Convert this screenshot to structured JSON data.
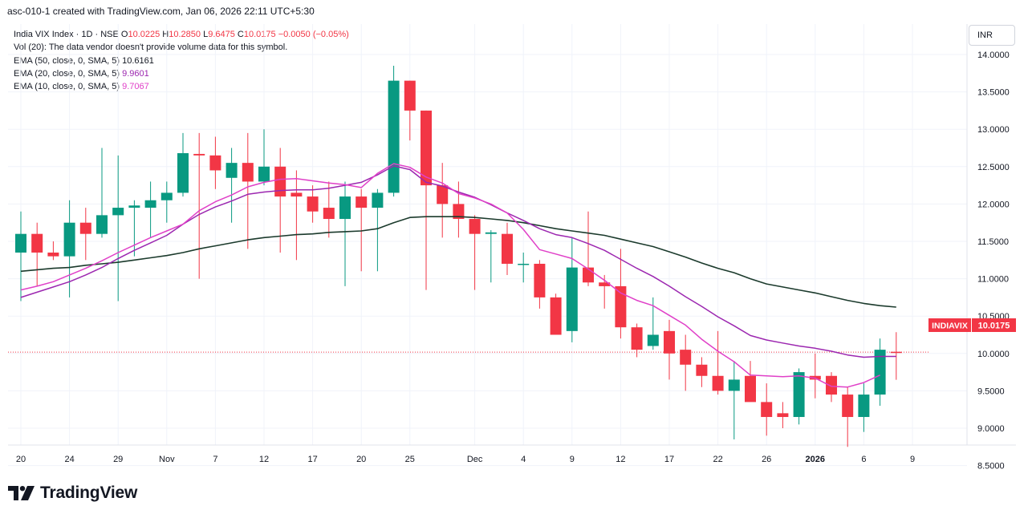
{
  "header": {
    "text": "asc-010-1 created with TradingView.com, Jan 06, 2026 22:11 UTC+5:30"
  },
  "legend": {
    "symbol": "India VIX Index · 1D · NSE",
    "o_label": "O",
    "o_value": "10.0225",
    "h_label": "H",
    "h_value": "10.2850",
    "l_label": "L",
    "l_value": "9.6475",
    "c_label": "C",
    "c_value": "10.0175",
    "change": "−0.0050 (−0.05%)",
    "vol_note": "Vol (20): The data vendor doesn't provide volume data for this symbol.",
    "ema50_label": "EMA (50, close, 0, SMA, 5)",
    "ema50_value": "10.6161",
    "ema20_label": "EMA (20, close, 0, SMA, 5)",
    "ema20_value": "9.9601",
    "ema10_label": "EMA (10, close, 0, SMA, 5)",
    "ema10_value": "9.7067"
  },
  "currency": "INR",
  "price_tag": {
    "symbol": "INDIAVIX",
    "value": "10.0175"
  },
  "brand": {
    "name": "TradingView"
  },
  "colors": {
    "up": "#089981",
    "down": "#f23645",
    "ema50": "#1b3a2c",
    "ema20": "#9c27b0",
    "ema10": "#e040c8",
    "last": "#f23645"
  },
  "chart_data": {
    "type": "candlestick",
    "y_ticks": [
      "14.0000",
      "13.5000",
      "13.0000",
      "12.5000",
      "12.0000",
      "11.5000",
      "11.0000",
      "10.5000",
      "10.0000",
      "9.5000",
      "9.0000",
      "8.5000"
    ],
    "ylim": [
      8.3,
      14.3
    ],
    "x_ticks": [
      {
        "label": "20",
        "i": 0
      },
      {
        "label": "24",
        "i": 3
      },
      {
        "label": "29",
        "i": 6
      },
      {
        "label": "Nov",
        "i": 9
      },
      {
        "label": "7",
        "i": 12
      },
      {
        "label": "12",
        "i": 15
      },
      {
        "label": "17",
        "i": 18
      },
      {
        "label": "20",
        "i": 21
      },
      {
        "label": "25",
        "i": 24
      },
      {
        "label": "Dec",
        "i": 28
      },
      {
        "label": "4",
        "i": 31
      },
      {
        "label": "9",
        "i": 34
      },
      {
        "label": "12",
        "i": 37
      },
      {
        "label": "17",
        "i": 40
      },
      {
        "label": "22",
        "i": 43
      },
      {
        "label": "26",
        "i": 46
      },
      {
        "label": "2026",
        "i": 49
      },
      {
        "label": "6",
        "i": 52
      },
      {
        "label": "9",
        "i": 55
      }
    ],
    "candles": [
      {
        "o": 11.35,
        "h": 11.9,
        "l": 10.7,
        "c": 11.6
      },
      {
        "o": 11.6,
        "h": 11.75,
        "l": 10.9,
        "c": 11.35
      },
      {
        "o": 11.35,
        "h": 11.5,
        "l": 11.25,
        "c": 11.3
      },
      {
        "o": 11.3,
        "h": 12.05,
        "l": 10.75,
        "c": 11.75
      },
      {
        "o": 11.75,
        "h": 11.95,
        "l": 11.25,
        "c": 11.6
      },
      {
        "o": 11.6,
        "h": 12.75,
        "l": 11.55,
        "c": 11.85
      },
      {
        "o": 11.85,
        "h": 12.65,
        "l": 10.7,
        "c": 11.95
      },
      {
        "o": 11.95,
        "h": 12.05,
        "l": 11.3,
        "c": 11.98
      },
      {
        "o": 11.95,
        "h": 12.3,
        "l": 11.55,
        "c": 12.05
      },
      {
        "o": 12.05,
        "h": 12.3,
        "l": 11.75,
        "c": 12.15
      },
      {
        "o": 12.15,
        "h": 12.95,
        "l": 12.1,
        "c": 12.68
      },
      {
        "o": 12.67,
        "h": 12.95,
        "l": 11.0,
        "c": 12.65
      },
      {
        "o": 12.65,
        "h": 12.9,
        "l": 12.2,
        "c": 12.45
      },
      {
        "o": 12.35,
        "h": 12.75,
        "l": 11.75,
        "c": 12.55
      },
      {
        "o": 12.55,
        "h": 12.95,
        "l": 11.4,
        "c": 12.3
      },
      {
        "o": 12.3,
        "h": 13.0,
        "l": 12.25,
        "c": 12.5
      },
      {
        "o": 12.5,
        "h": 12.75,
        "l": 11.35,
        "c": 12.1
      },
      {
        "o": 12.15,
        "h": 12.45,
        "l": 11.25,
        "c": 12.1
      },
      {
        "o": 12.1,
        "h": 12.25,
        "l": 11.75,
        "c": 11.9
      },
      {
        "o": 11.95,
        "h": 12.3,
        "l": 11.55,
        "c": 11.8
      },
      {
        "o": 11.8,
        "h": 12.3,
        "l": 10.9,
        "c": 12.1
      },
      {
        "o": 12.1,
        "h": 12.2,
        "l": 11.1,
        "c": 11.95
      },
      {
        "o": 11.95,
        "h": 12.2,
        "l": 11.1,
        "c": 12.15
      },
      {
        "o": 12.15,
        "h": 13.85,
        "l": 12.1,
        "c": 13.65
      },
      {
        "o": 13.65,
        "h": 13.65,
        "l": 12.85,
        "c": 13.25
      },
      {
        "o": 13.25,
        "h": 13.25,
        "l": 10.85,
        "c": 12.25
      },
      {
        "o": 12.25,
        "h": 12.55,
        "l": 11.55,
        "c": 12.0
      },
      {
        "o": 12.0,
        "h": 12.3,
        "l": 11.55,
        "c": 11.8
      },
      {
        "o": 11.8,
        "h": 11.85,
        "l": 10.85,
        "c": 11.6
      },
      {
        "o": 11.6,
        "h": 11.65,
        "l": 10.95,
        "c": 11.62
      },
      {
        "o": 11.6,
        "h": 11.75,
        "l": 11.05,
        "c": 11.2
      },
      {
        "o": 11.2,
        "h": 11.35,
        "l": 10.95,
        "c": 11.2
      },
      {
        "o": 11.2,
        "h": 11.25,
        "l": 10.6,
        "c": 10.75
      },
      {
        "o": 10.75,
        "h": 10.8,
        "l": 10.3,
        "c": 10.25
      },
      {
        "o": 10.3,
        "h": 11.55,
        "l": 10.15,
        "c": 11.15
      },
      {
        "o": 11.15,
        "h": 11.9,
        "l": 10.9,
        "c": 10.95
      },
      {
        "o": 10.95,
        "h": 11.05,
        "l": 10.6,
        "c": 10.9
      },
      {
        "o": 10.9,
        "h": 11.4,
        "l": 10.2,
        "c": 10.35
      },
      {
        "o": 10.35,
        "h": 10.4,
        "l": 9.95,
        "c": 10.05
      },
      {
        "o": 10.1,
        "h": 10.75,
        "l": 10.05,
        "c": 10.25
      },
      {
        "o": 10.3,
        "h": 10.45,
        "l": 9.65,
        "c": 10.0
      },
      {
        "o": 10.05,
        "h": 10.25,
        "l": 9.5,
        "c": 9.85
      },
      {
        "o": 9.85,
        "h": 9.95,
        "l": 9.55,
        "c": 9.7
      },
      {
        "o": 9.7,
        "h": 10.3,
        "l": 9.45,
        "c": 9.5
      },
      {
        "o": 9.5,
        "h": 9.9,
        "l": 8.85,
        "c": 9.65
      },
      {
        "o": 9.7,
        "h": 9.9,
        "l": 9.4,
        "c": 9.35
      },
      {
        "o": 9.35,
        "h": 9.6,
        "l": 8.9,
        "c": 9.15
      },
      {
        "o": 9.2,
        "h": 9.35,
        "l": 9.0,
        "c": 9.15
      },
      {
        "o": 9.15,
        "h": 9.8,
        "l": 9.05,
        "c": 9.75
      },
      {
        "o": 9.7,
        "h": 10.0,
        "l": 9.4,
        "c": 9.65
      },
      {
        "o": 9.7,
        "h": 9.75,
        "l": 9.35,
        "c": 9.45
      },
      {
        "o": 9.45,
        "h": 9.55,
        "l": 8.75,
        "c": 9.15
      },
      {
        "o": 9.15,
        "h": 9.6,
        "l": 8.95,
        "c": 9.45
      },
      {
        "o": 9.45,
        "h": 10.2,
        "l": 9.3,
        "c": 10.05
      },
      {
        "o": 10.0225,
        "h": 10.285,
        "l": 9.6475,
        "c": 10.0175
      }
    ],
    "series": [
      {
        "name": "EMA (50, close, 0, SMA, 5)",
        "key": "ema50",
        "start": 0,
        "values": [
          11.1,
          11.12,
          11.14,
          11.15,
          11.18,
          11.2,
          11.22,
          11.25,
          11.28,
          11.31,
          11.35,
          11.4,
          11.44,
          11.48,
          11.52,
          11.55,
          11.57,
          11.59,
          11.6,
          11.62,
          11.63,
          11.64,
          11.67,
          11.75,
          11.82,
          11.83,
          11.83,
          11.83,
          11.82,
          11.8,
          11.78,
          11.75,
          11.71,
          11.67,
          11.64,
          11.61,
          11.58,
          11.53,
          11.48,
          11.43,
          11.36,
          11.29,
          11.21,
          11.14,
          11.08,
          11.0,
          10.93,
          10.89,
          10.85,
          10.81,
          10.76,
          10.71,
          10.67,
          10.64,
          10.62
        ]
      },
      {
        "name": "EMA (20, close, 0, SMA, 5)",
        "key": "ema20",
        "start": 0,
        "values": [
          10.75,
          10.82,
          10.89,
          10.96,
          11.05,
          11.15,
          11.27,
          11.38,
          11.48,
          11.58,
          11.73,
          11.86,
          11.96,
          12.04,
          12.13,
          12.16,
          12.18,
          12.19,
          12.19,
          12.21,
          12.25,
          12.29,
          12.39,
          12.51,
          12.46,
          12.29,
          12.24,
          12.16,
          12.09,
          11.99,
          11.88,
          11.78,
          11.67,
          11.59,
          11.55,
          11.47,
          11.38,
          11.26,
          11.14,
          11.03,
          10.9,
          10.76,
          10.63,
          10.49,
          10.37,
          10.24,
          10.18,
          10.14,
          10.1,
          10.07,
          10.03,
          9.98,
          9.95,
          9.96,
          9.96
        ]
      },
      {
        "name": "EMA (10, close, 0, SMA, 5)",
        "key": "ema10",
        "start": 0,
        "values": [
          10.85,
          10.9,
          10.96,
          11.05,
          11.14,
          11.24,
          11.35,
          11.45,
          11.55,
          11.64,
          11.73,
          11.91,
          12.03,
          12.12,
          12.23,
          12.29,
          12.33,
          12.34,
          12.31,
          12.28,
          12.26,
          12.22,
          12.41,
          12.54,
          12.49,
          12.36,
          12.28,
          12.14,
          12.08,
          12.0,
          11.88,
          11.66,
          11.39,
          11.33,
          11.27,
          11.13,
          10.98,
          10.81,
          10.71,
          10.64,
          10.51,
          10.38,
          10.19,
          10.03,
          9.89,
          9.71,
          9.7,
          9.69,
          9.7,
          9.67,
          9.56,
          9.55,
          9.61,
          9.71
        ]
      }
    ]
  }
}
